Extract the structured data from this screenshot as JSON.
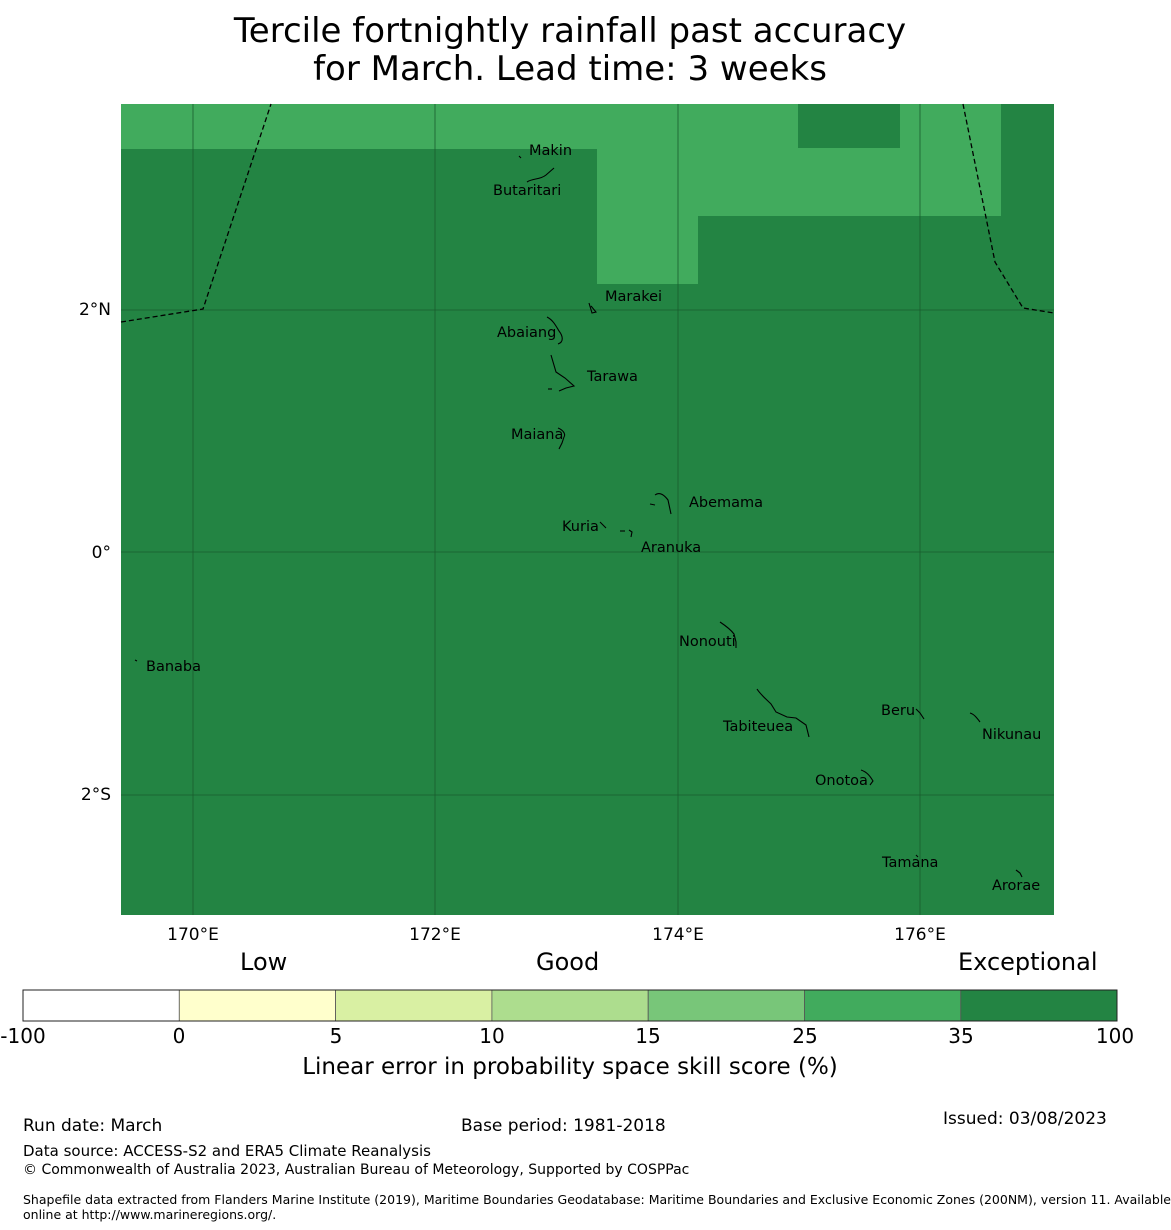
{
  "title_line1": "Tercile fortnightly rainfall past accuracy",
  "title_line2": "for March. Lead time: 3 weeks",
  "axes": {
    "lon_labels": [
      "170°E",
      "172°E",
      "174°E",
      "176°E"
    ],
    "lat_labels": [
      "2°N",
      "0°",
      "2°S"
    ]
  },
  "places": [
    "Makin",
    "Butaritari",
    "Marakei",
    "Abaiang",
    "Tarawa",
    "Maiana",
    "Abemama",
    "Kuria",
    "Aranuka",
    "Nonouti",
    "Banaba",
    "Tabiteuea",
    "Beru",
    "Nikunau",
    "Onotoa",
    "Tamana",
    "Arorae"
  ],
  "colorbar": {
    "categories": [
      "Low",
      "Good",
      "Exceptional"
    ],
    "ticks": [
      "-100",
      "0",
      "5",
      "10",
      "15",
      "25",
      "35",
      "100"
    ],
    "colors": [
      "#ffffff",
      "#ffffcc",
      "#d9f0a3",
      "#addd8e",
      "#78c679",
      "#41ab5d",
      "#238443"
    ],
    "label": "Linear error in probability space skill score (%)"
  },
  "grid_colors": {
    "exceptional": "#238443",
    "band_25_35": "#41ab5d"
  },
  "footer": {
    "run_date": "Run date: March",
    "base_period": "Base period: 1981-2018",
    "issued": "Issued: 03/08/2023",
    "data_source": "Data source: ACCESS-S2 and ERA5 Climate Reanalysis",
    "copyright": "© Commonwealth of Australia 2023, Australian Bureau of Meteorology, Supported by COSPPac",
    "shapefile_line1": "Shapefile data extracted from Flanders Marine Institute (2019), Maritime Boundaries Geodatabase: Maritime Boundaries and Exclusive Economic Zones (200NM), version 11. Available",
    "shapefile_line2": "online at http://www.marineregions.org/."
  }
}
